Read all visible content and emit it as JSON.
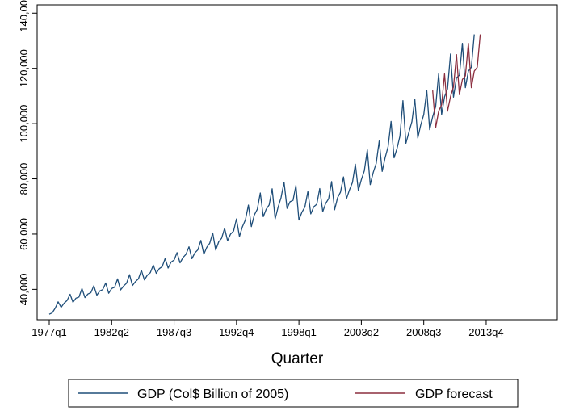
{
  "chart_data": {
    "type": "line",
    "title": "",
    "xlabel": "Quarter",
    "ylabel": "",
    "xlim": [
      "1977q1",
      "2019q2"
    ],
    "ylim": [
      29000,
      143000
    ],
    "x_tick_labels": [
      "1977q1",
      "1982q2",
      "1987q3",
      "1992q4",
      "1998q1",
      "2003q2",
      "2008q3",
      "2013q4"
    ],
    "x_tick_quarter_index": [
      0,
      21,
      42,
      63,
      84,
      105,
      126,
      147
    ],
    "y_ticks": [
      40000,
      60000,
      80000,
      100000,
      120000,
      140000
    ],
    "y_tick_labels": [
      "40,000",
      "60,000",
      "80,000",
      "100,000",
      "120,000",
      "140,000"
    ],
    "grid": false,
    "legend_position": "bottom",
    "start_quarter": "1977q1",
    "series": [
      {
        "name": "GDP (Col$ Billion of 2005)",
        "color": "#1f4e79",
        "start_index": 0,
        "values": [
          31000,
          31500,
          33200,
          35500,
          33500,
          35000,
          36000,
          38200,
          35300,
          36800,
          37200,
          40300,
          37000,
          38300,
          38800,
          41300,
          37900,
          39400,
          39900,
          42300,
          38600,
          40300,
          40800,
          43800,
          39800,
          41200,
          42200,
          45300,
          41400,
          42800,
          43800,
          46900,
          43400,
          45100,
          46000,
          48800,
          45800,
          47500,
          48200,
          51200,
          47700,
          49900,
          50600,
          53300,
          49600,
          51500,
          52700,
          55400,
          51100,
          53200,
          54300,
          57700,
          52700,
          55200,
          56700,
          60400,
          54200,
          57200,
          58500,
          62100,
          57600,
          60000,
          61100,
          65500,
          59100,
          62700,
          65200,
          70500,
          62700,
          66900,
          69000,
          74900,
          66300,
          69000,
          70600,
          76400,
          65500,
          69800,
          73200,
          78800,
          69300,
          71700,
          72200,
          77600,
          65100,
          67900,
          69800,
          75400,
          67300,
          69900,
          70800,
          76500,
          68100,
          71100,
          72800,
          79000,
          68800,
          73200,
          75200,
          80700,
          72800,
          76000,
          78700,
          85300,
          75800,
          79700,
          82900,
          90500,
          77900,
          82300,
          85600,
          93700,
          82700,
          87600,
          91600,
          100800,
          87600,
          91000,
          95500,
          108300,
          92900,
          96900,
          100700,
          108800,
          94800,
          99600,
          103300,
          112000,
          97800,
          102500,
          106100,
          118000,
          103300,
          109700,
          112600,
          125200,
          109600,
          116600,
          117500,
          129100,
          113000,
          119000,
          120400,
          132300
        ]
      },
      {
        "name": "GDP forecast",
        "color": "#8b2e3f",
        "start_index": 129,
        "values": [
          112000,
          98500,
          104500,
          106800,
          118000,
          104500,
          109800,
          113300,
          125000,
          110500,
          116000,
          117300,
          129100,
          113000,
          119000,
          120400,
          132300
        ]
      }
    ]
  }
}
